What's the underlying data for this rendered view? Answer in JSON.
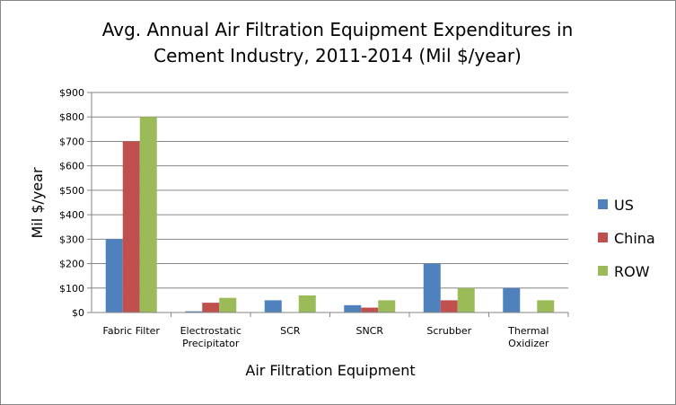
{
  "chart_data": {
    "type": "bar",
    "title_lines": [
      "Avg. Annual  Air Filtration Equipment Expenditures in",
      "Cement Industry, 2011-2014  (Mil $/year)"
    ],
    "xlabel": "Air Filtration Equipment",
    "ylabel": "Mil $/year",
    "categories": [
      [
        "Fabric Filter"
      ],
      [
        "Electrostatic",
        "Precipitator"
      ],
      [
        "SCR"
      ],
      [
        "SNCR"
      ],
      [
        "Scrubber"
      ],
      [
        "Thermal",
        "Oxidizer"
      ]
    ],
    "series": [
      {
        "name": "US",
        "color": "#4F81BD",
        "values": [
          300,
          5,
          50,
          30,
          200,
          100
        ]
      },
      {
        "name": "China",
        "color": "#C0504D",
        "values": [
          700,
          40,
          0,
          20,
          50,
          0
        ]
      },
      {
        "name": "ROW",
        "color": "#9BBB59",
        "values": [
          800,
          60,
          70,
          50,
          100,
          50
        ]
      }
    ],
    "ylim": [
      0,
      900
    ],
    "yticks": [
      0,
      100,
      200,
      300,
      400,
      500,
      600,
      700,
      800,
      900
    ],
    "ytick_labels": [
      "$0",
      "$100",
      "$200",
      "$300",
      "$400",
      "$500",
      "$600",
      "$700",
      "$800",
      "$900"
    ],
    "grid": true,
    "legend_position": "right"
  }
}
